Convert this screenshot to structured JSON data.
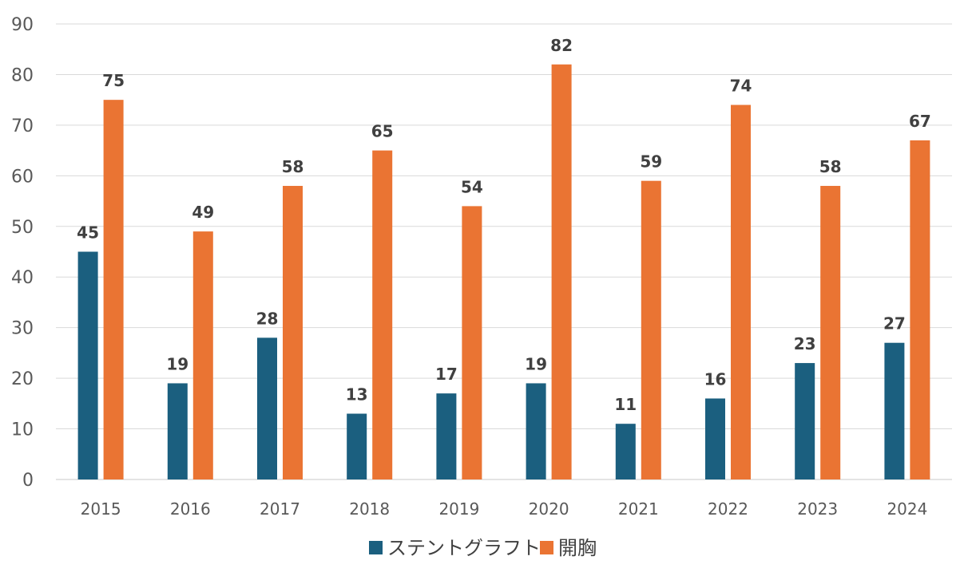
{
  "chart_data": {
    "type": "bar",
    "categories": [
      "2015",
      "2016",
      "2017",
      "2018",
      "2019",
      "2020",
      "2021",
      "2022",
      "2023",
      "2024"
    ],
    "series": [
      {
        "name": "ステントグラフト",
        "color": "#1b5f7f",
        "values": [
          45,
          19,
          28,
          13,
          17,
          19,
          11,
          16,
          23,
          27
        ]
      },
      {
        "name": "開胸",
        "color": "#ea7433",
        "values": [
          75,
          49,
          58,
          65,
          54,
          82,
          59,
          74,
          58,
          67
        ]
      }
    ],
    "yticks": [
      "0",
      "10",
      "20",
      "30",
      "40",
      "50",
      "60",
      "70",
      "80",
      "90"
    ],
    "ylim": [
      0,
      90
    ],
    "title": "",
    "xlabel": "",
    "ylabel": "",
    "grid": true,
    "legend_position": "bottom",
    "data_labels": true
  }
}
